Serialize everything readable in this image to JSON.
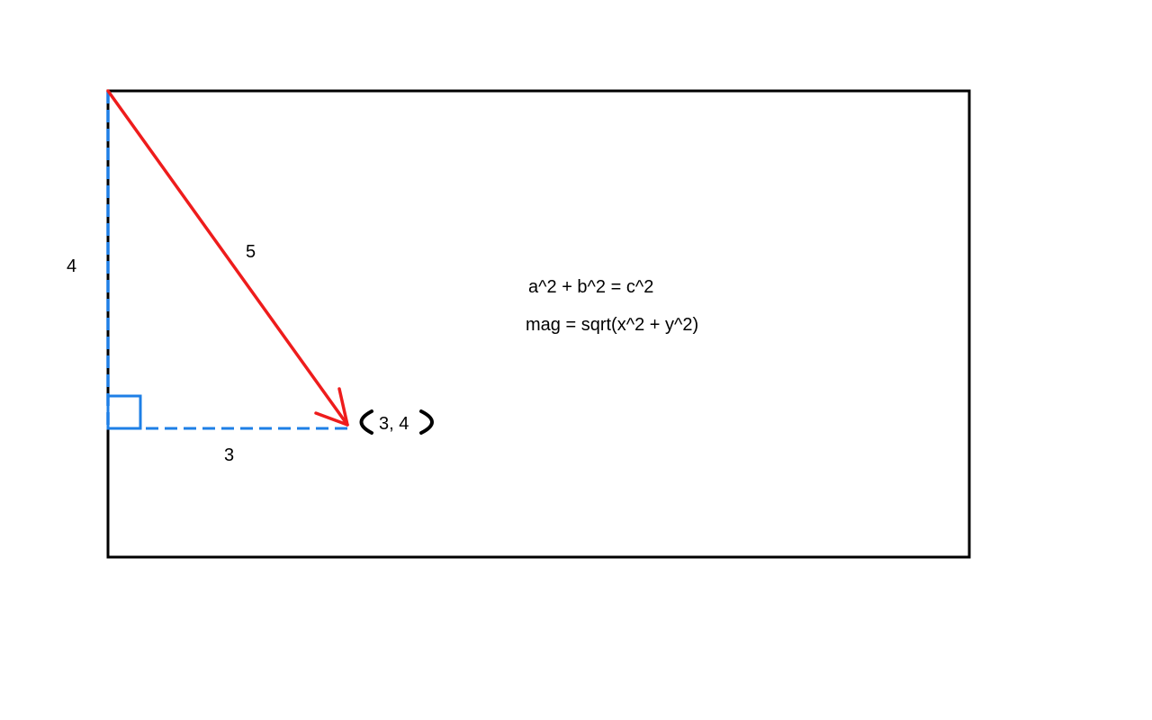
{
  "labels": {
    "side_vertical": "4",
    "side_horizontal": "3",
    "hypotenuse": "5",
    "point": "3, 4"
  },
  "formulas": {
    "pythagorean": "a^2 + b^2 = c^2",
    "magnitude": "mag = sqrt(x^2 + y^2)"
  },
  "colors": {
    "frame": "#000000",
    "legs": "#1e7fe6",
    "vector": "#ee1c1c",
    "text": "#000000"
  }
}
